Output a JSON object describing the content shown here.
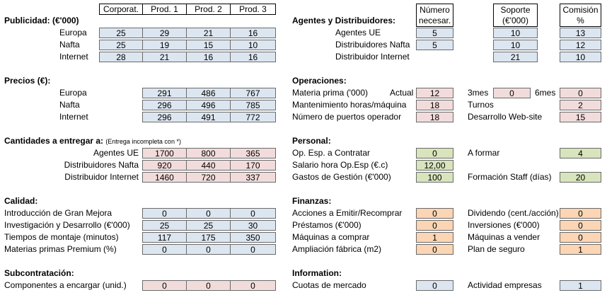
{
  "columns": [
    "Corporat.",
    "Prod. 1",
    "Prod. 2",
    "Prod. 3"
  ],
  "publicidad": {
    "title": "Publicidad: (€'000)",
    "rows": [
      {
        "label": "Europa",
        "values": [
          "25",
          "29",
          "21",
          "16"
        ]
      },
      {
        "label": "Nafta",
        "values": [
          "25",
          "19",
          "15",
          "10"
        ]
      },
      {
        "label": "Internet",
        "values": [
          "28",
          "21",
          "16",
          "16"
        ]
      }
    ]
  },
  "precios": {
    "title": "Precios (€):",
    "rows": [
      {
        "label": "Europa",
        "values": [
          "291",
          "486",
          "767"
        ]
      },
      {
        "label": "Nafta",
        "values": [
          "296",
          "496",
          "785"
        ]
      },
      {
        "label": "Internet",
        "values": [
          "296",
          "491",
          "772"
        ]
      }
    ]
  },
  "cantidades": {
    "title": "Cantidades a entregar a:",
    "note": "(Entrega incompleta con *)",
    "rows": [
      {
        "label": "Agentes UE",
        "values": [
          "1700",
          "800",
          "365"
        ]
      },
      {
        "label": "Distribuidores Nafta",
        "values": [
          "920",
          "440",
          "170"
        ]
      },
      {
        "label": "Distribuidor Internet",
        "values": [
          "1460",
          "720",
          "337"
        ]
      }
    ]
  },
  "calidad": {
    "title": "Calidad:",
    "rows": [
      {
        "label": "Introducción de Gran Mejora",
        "values": [
          "0",
          "0",
          "0"
        ]
      },
      {
        "label": "Investigación y Desarrollo (€'000)",
        "values": [
          "25",
          "25",
          "30"
        ]
      },
      {
        "label": "Tiempos de montaje (minutos)",
        "values": [
          "117",
          "175",
          "350"
        ]
      },
      {
        "label": "Materias primas Premium (%)",
        "values": [
          "0",
          "0",
          "0"
        ]
      }
    ]
  },
  "subcontratacion": {
    "title": "Subcontratación:",
    "rows": [
      {
        "label": "Componentes a encargar (unid.)",
        "values": [
          "0",
          "0",
          "0"
        ]
      }
    ]
  },
  "agentes": {
    "title": "Agentes y Distribuidores:",
    "col_headers": [
      "Número necesar.",
      "Soporte (€'000)",
      "Comisión %"
    ],
    "col_headers_lines": [
      [
        "Número",
        "necesar."
      ],
      [
        "Soporte",
        "(€'000)"
      ],
      [
        "Comisión",
        "%"
      ]
    ],
    "rows": [
      {
        "label": "Agentes UE",
        "numero": "5",
        "soporte": "10",
        "comision": "13"
      },
      {
        "label": "Distribuidores Nafta",
        "numero": "5",
        "soporte": "10",
        "comision": "12"
      },
      {
        "label": "Distribuidor Internet",
        "numero": "",
        "soporte": "21",
        "comision": "10"
      }
    ]
  },
  "operaciones": {
    "title": "Operaciones:",
    "materia_label": "Materia prima ('000)",
    "actual_label": "Actual",
    "actual_value": "12",
    "tres_mes_label": "3mes",
    "tres_mes_value": "0",
    "seis_mes_label": "6mes",
    "seis_mes_value": "0",
    "mant_label": "Mantenimiento horas/máquina",
    "mant_value": "18",
    "turnos_label": "Turnos",
    "turnos_value": "2",
    "puertos_label": "Número de puertos operador",
    "puertos_value": "18",
    "web_label": "Desarrollo Web-site",
    "web_value": "15"
  },
  "personal": {
    "title": "Personal:",
    "contratar_label": "Op. Esp. a Contratar",
    "contratar_value": "0",
    "formar_label": "A formar",
    "formar_value": "4",
    "salario_label": "Salario hora Op.Esp (€.c)",
    "salario_value": "12,00",
    "gastos_label": "Gastos de Gestión (€'000)",
    "gastos_value": "100",
    "formacion_label": "Formación Staff (días)",
    "formacion_value": "20"
  },
  "finanzas": {
    "title": "Finanzas:",
    "rows": [
      {
        "l1": "Acciones a Emitir/Recomprar",
        "v1": "0",
        "l2": "Dividendo (cent./acción)",
        "v2": "0"
      },
      {
        "l1": "Préstamos (€'000)",
        "v1": "0",
        "l2": "Inversiones (€'000)",
        "v2": "0"
      },
      {
        "l1": "Máquinas a comprar",
        "v1": "1",
        "l2": "Máquinas a vender",
        "v2": "0"
      },
      {
        "l1": "Ampliación fábrica (m2)",
        "v1": "0",
        "l2": "Plan de seguro",
        "v2": "1"
      }
    ]
  },
  "information": {
    "title": "Information:",
    "cuotas_label": "Cuotas de mercado",
    "cuotas_value": "0",
    "actividad_label": "Actividad empresas",
    "actividad_value": "1"
  }
}
